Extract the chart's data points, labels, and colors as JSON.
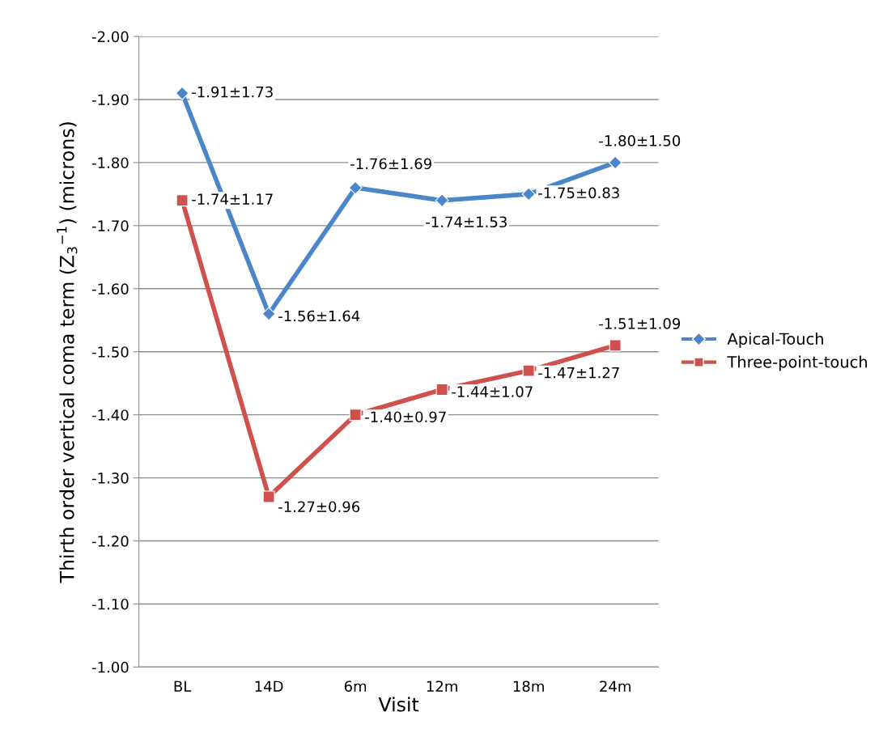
{
  "chart_data": {
    "type": "line",
    "xlabel": "Visit",
    "ylabel": "Thirth order vertical coma term (Z$_{3}$$^{−1}$) (microns)",
    "categories": [
      "BL",
      "14D",
      "6m",
      "12m",
      "18m",
      "24m"
    ],
    "series": [
      {
        "name": "Apical-Touch",
        "color": "#4a86c8",
        "marker": "diamond",
        "values": [
          -1.91,
          -1.56,
          -1.76,
          -1.74,
          -1.75,
          -1.8
        ],
        "value_labels": [
          "-1.91±1.73",
          "-1.56±1.64",
          "-1.76±1.69",
          "-1.74±1.53",
          "-1.75±0.83",
          "-1.80±1.50"
        ]
      },
      {
        "name": "Three-point-touch",
        "color": "#d0504d",
        "marker": "square",
        "values": [
          -1.74,
          -1.27,
          -1.4,
          -1.44,
          -1.47,
          -1.51
        ],
        "value_labels": [
          "-1.74±1.17",
          "-1.27±0.96",
          "-1.40±0.97",
          "-1.44±1.07",
          "-1.47±1.27",
          "-1.51±1.09"
        ]
      }
    ],
    "ylim": [
      -1.0,
      -2.0
    ],
    "yticks": [
      {
        "value": -1.0,
        "label": "-1.00"
      },
      {
        "value": -1.1,
        "label": "-1.10"
      },
      {
        "value": -1.2,
        "label": "-1.20"
      },
      {
        "value": -1.3,
        "label": "-1.30"
      },
      {
        "value": -1.4,
        "label": "-1.40"
      },
      {
        "value": -1.5,
        "label": "-1.50"
      },
      {
        "value": -1.6,
        "label": "-1.60"
      },
      {
        "value": -1.7,
        "label": "-1.70"
      },
      {
        "value": -1.8,
        "label": "-1.80"
      },
      {
        "value": -1.9,
        "label": "-1.90"
      },
      {
        "value": -2.0,
        "label": "-2.00"
      }
    ],
    "grid": "y",
    "legend": "right",
    "line_style": "solid"
  }
}
